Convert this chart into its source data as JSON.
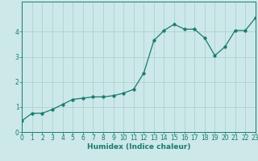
{
  "xlabel": "Humidex (Indice chaleur)",
  "x": [
    0,
    1,
    2,
    3,
    4,
    5,
    6,
    7,
    8,
    9,
    10,
    11,
    12,
    13,
    14,
    15,
    16,
    17,
    18,
    19,
    20,
    21,
    22,
    23
  ],
  "y": [
    0.45,
    0.75,
    0.75,
    0.9,
    1.1,
    1.3,
    1.35,
    1.4,
    1.4,
    1.45,
    1.55,
    1.7,
    2.35,
    3.65,
    4.05,
    4.3,
    4.1,
    4.1,
    3.75,
    3.05,
    3.4,
    4.05,
    4.05,
    4.55
  ],
  "line_color": "#1a7a6e",
  "marker_size": 2.5,
  "bg_color": "#cce8e8",
  "grid_color": "#aacccc",
  "axis_color": "#1a7a6e",
  "tick_label_color": "#1a7a6e",
  "xlabel_color": "#1a7a6e",
  "xlim": [
    0,
    23
  ],
  "ylim": [
    0,
    5.2
  ],
  "yticks": [
    0,
    1,
    2,
    3,
    4
  ],
  "xticks": [
    0,
    1,
    2,
    3,
    4,
    5,
    6,
    7,
    8,
    9,
    10,
    11,
    12,
    13,
    14,
    15,
    16,
    17,
    18,
    19,
    20,
    21,
    22,
    23
  ],
  "xlabel_fontsize": 6.5,
  "tick_fontsize": 5.5
}
